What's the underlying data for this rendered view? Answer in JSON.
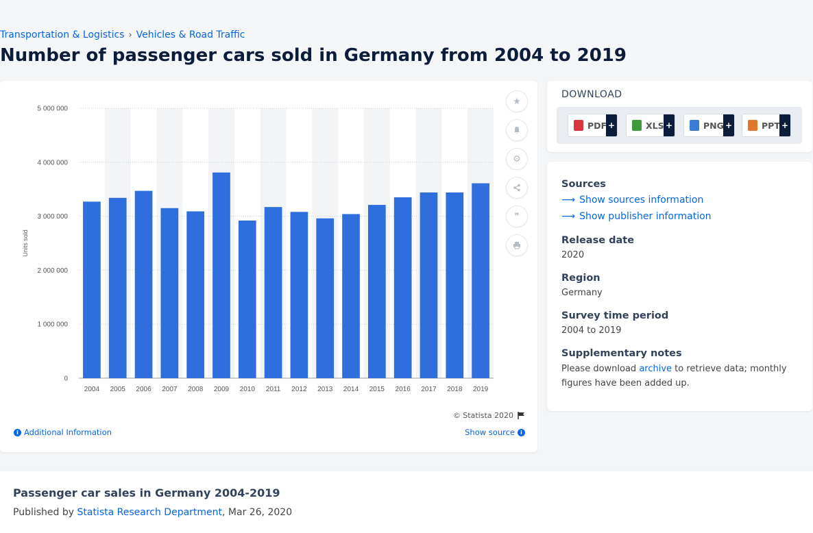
{
  "breadcrumb": {
    "items": [
      "Transportation & Logistics",
      "Vehicles & Road Traffic"
    ],
    "separator": "›"
  },
  "page": {
    "title": "Number of passenger cars sold in Germany from 2004 to 2019"
  },
  "chart_data": {
    "type": "bar",
    "categories": [
      "2004",
      "2005",
      "2006",
      "2007",
      "2008",
      "2009",
      "2010",
      "2011",
      "2012",
      "2013",
      "2014",
      "2015",
      "2016",
      "2017",
      "2018",
      "2019"
    ],
    "values": [
      3270000,
      3340000,
      3470000,
      3150000,
      3090000,
      3810000,
      2920000,
      3170000,
      3080000,
      2960000,
      3040000,
      3210000,
      3350000,
      3440000,
      3440000,
      3610000
    ],
    "ylabel": "Units sold",
    "ylim": [
      0,
      5000000
    ],
    "yticks": [
      "0",
      "1 000 000",
      "2 000 000",
      "3 000 000",
      "4 000 000",
      "5 000 000"
    ],
    "grid": true,
    "bar_color": "#2f6fdd",
    "band_color": "#f3f4f6"
  },
  "chart_footer": {
    "copyright": "© Statista 2020",
    "additional_info": "Additional Information",
    "show_source": "Show source"
  },
  "side_tools": [
    "star-icon",
    "bell-icon",
    "gear-icon",
    "share-icon",
    "quote-icon",
    "print-icon"
  ],
  "download": {
    "heading": "DOWNLOAD",
    "buttons": [
      {
        "label": "PDF",
        "color": "#d9363e"
      },
      {
        "label": "XLS",
        "color": "#3e9a3a"
      },
      {
        "label": "PNG",
        "color": "#3a7bd5"
      },
      {
        "label": "PPT",
        "color": "#e0772c"
      }
    ],
    "plus": "+"
  },
  "meta": {
    "sources_heading": "Sources",
    "sources_link": "Show sources information",
    "publisher_link": "Show publisher information",
    "release_heading": "Release date",
    "release_value": "2020",
    "region_heading": "Region",
    "region_value": "Germany",
    "survey_heading": "Survey time period",
    "survey_value": "2004 to 2019",
    "notes_heading": "Supplementary notes",
    "notes_before": "Please download ",
    "notes_link": "archive",
    "notes_after": " to retrieve data; monthly figures have been added up."
  },
  "publication": {
    "title": "Passenger car sales in Germany 2004-2019",
    "published_by": "Published by ",
    "department": "Statista Research Department",
    "date": ", Mar 26, 2020"
  }
}
